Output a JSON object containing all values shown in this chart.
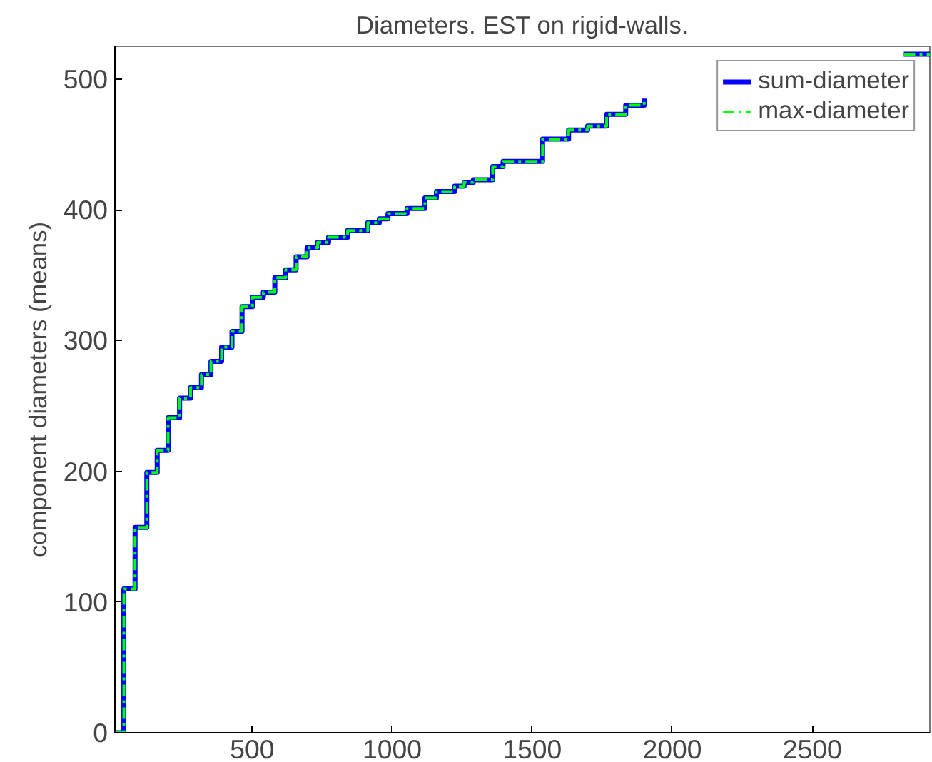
{
  "chart_data": {
    "type": "step",
    "title": "Diameters. EST on rigid-walls.",
    "ylabel": "component diameters (means)",
    "x": [
      10,
      42,
      82,
      124,
      161,
      200,
      241,
      280,
      319,
      353,
      391,
      428,
      464,
      501,
      540,
      581,
      620,
      657,
      696,
      734,
      773,
      841,
      913,
      954,
      985,
      1053,
      1117,
      1158,
      1223,
      1257,
      1290,
      1359,
      1396,
      1537,
      1630,
      1698,
      1766,
      1834,
      1900,
      2300,
      2827,
      2920
    ],
    "series": [
      {
        "name": "sum-diameter",
        "color": "#0000ff",
        "line_style": "solid",
        "values": [
          0,
          110,
          157,
          199,
          216,
          241,
          256,
          264,
          274,
          284,
          295,
          307,
          326,
          333,
          337,
          348,
          354,
          364,
          371,
          375,
          379,
          384,
          390,
          393,
          397,
          401,
          409,
          414,
          418,
          421,
          423,
          433,
          437,
          454,
          461,
          464,
          473,
          480,
          485,
          null,
          519,
          519
        ]
      },
      {
        "name": "max-diameter",
        "color": "#00ff00",
        "line_style": "dashed",
        "values": [
          0,
          110,
          157,
          199,
          216,
          241,
          256,
          264,
          274,
          284,
          295,
          307,
          326,
          333,
          337,
          348,
          354,
          364,
          371,
          375,
          379,
          384,
          390,
          393,
          397,
          401,
          409,
          414,
          418,
          421,
          423,
          433,
          437,
          454,
          461,
          464,
          473,
          480,
          485,
          null,
          519,
          519
        ]
      }
    ],
    "xlim": [
      10,
      2920
    ],
    "ylim": [
      0,
      525
    ],
    "xticks": [
      500,
      1000,
      1500,
      2000,
      2500
    ],
    "yticks": [
      0,
      100,
      200,
      300,
      400,
      500
    ],
    "grid": false,
    "legend": "top right"
  }
}
